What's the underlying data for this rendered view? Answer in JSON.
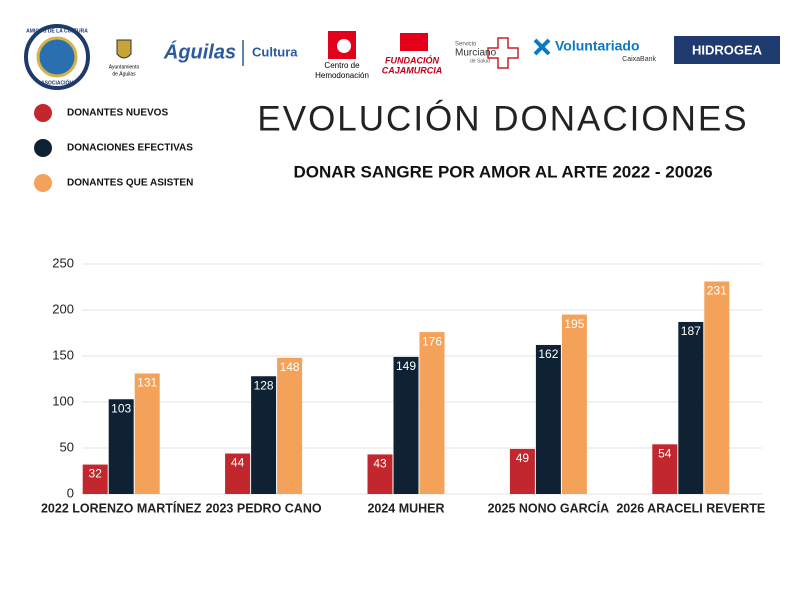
{
  "header": {
    "logos": {
      "asociacion": [
        "AMIGOS DE LA CULTURA",
        "ASOCIACIÓN"
      ],
      "ayuntamiento": [
        "Ayuntamiento",
        "de Águilas"
      ],
      "aguilas": "Águilas",
      "cultura": "Cultura",
      "hemodonacion": [
        "Centro de",
        "Hemodonación"
      ],
      "cajamurcia": [
        "FUNDACIÓN",
        "CAJAMURCIA"
      ],
      "sms": [
        "Servicio",
        "Murciano",
        "de Salud"
      ],
      "voluntariado": "Voluntariado",
      "caixabank": "CaixaBank",
      "hidrogea": "HIDROGEA"
    }
  },
  "chart_data": {
    "type": "bar",
    "title": "EVOLUCIÓN DONACIONES",
    "subtitle": "DONAR SANGRE POR AMOR AL ARTE 2022 - 20026",
    "categories": [
      "2022 LORENZO MARTÍNEZ",
      "2023 PEDRO CANO",
      "2024 MUHER",
      "2025 NONO GARCÍA",
      "2026 ARACELI REVERTE"
    ],
    "series": [
      {
        "name": "DONANTES NUEVOS",
        "color": "#c1272d",
        "values": [
          32,
          44,
          43,
          49,
          54
        ]
      },
      {
        "name": "DONACIONES EFECTIVAS",
        "color": "#0f2233",
        "values": [
          103,
          128,
          149,
          162,
          187
        ]
      },
      {
        "name": "DONANTES QUE ASISTEN",
        "color": "#f4a259",
        "values": [
          131,
          148,
          176,
          195,
          231
        ]
      }
    ],
    "ylim": [
      0,
      250
    ],
    "yticks": [
      0,
      50,
      100,
      150,
      200,
      250
    ],
    "grid": true,
    "legend": "top-left"
  }
}
